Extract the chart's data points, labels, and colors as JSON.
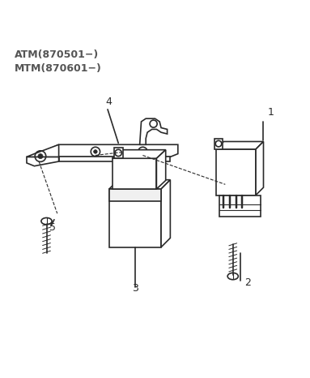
{
  "title_line1": "ATM(870501−)",
  "title_line2": "MTM(870601−)",
  "bg_color": "#ffffff",
  "line_color": "#2a2a2a",
  "title_color": "#555555",
  "figsize": [
    3.83,
    4.66
  ],
  "dpi": 100
}
